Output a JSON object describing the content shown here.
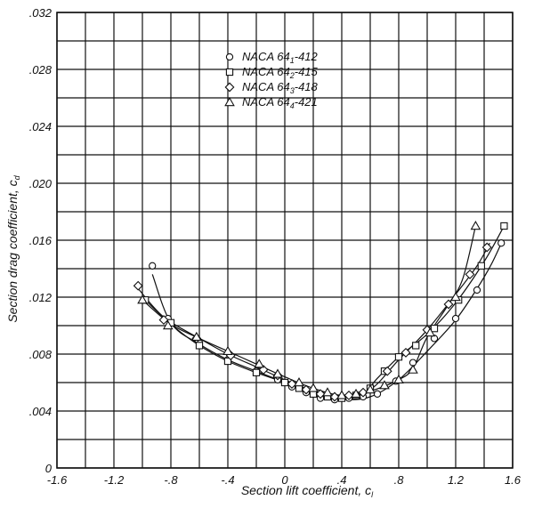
{
  "chart_data": {
    "type": "scatter",
    "title": "",
    "xlabel": "Section lift coefficient, c",
    "xlabel_sub": "l",
    "ylabel": "Section drag coefficient, c",
    "ylabel_sub": "d",
    "xlim": [
      -1.6,
      1.6
    ],
    "ylim": [
      0,
      0.032
    ],
    "x_ticks": [
      {
        "v": -1.6,
        "label": "-1.6"
      },
      {
        "v": -1.2,
        "label": "-1.2"
      },
      {
        "v": -0.8,
        "label": "-.8"
      },
      {
        "v": -0.4,
        "label": "-.4"
      },
      {
        "v": 0,
        "label": "0"
      },
      {
        "v": 0.4,
        "label": ".4"
      },
      {
        "v": 0.8,
        "label": ".8"
      },
      {
        "v": 1.2,
        "label": "1.2"
      },
      {
        "v": 1.6,
        "label": "1.6"
      }
    ],
    "y_ticks": [
      {
        "v": 0,
        "label": "0"
      },
      {
        "v": 0.004,
        "label": ".004"
      },
      {
        "v": 0.008,
        "label": ".008"
      },
      {
        "v": 0.012,
        "label": ".012"
      },
      {
        "v": 0.016,
        "label": ".016"
      },
      {
        "v": 0.02,
        "label": ".020"
      },
      {
        "v": 0.024,
        "label": ".024"
      },
      {
        "v": 0.028,
        "label": ".028"
      },
      {
        "v": 0.032,
        "label": ".032"
      }
    ],
    "grid": true,
    "grid_step_x": 0.2,
    "grid_step_y": 0.002,
    "legend_position": "top-center",
    "series": [
      {
        "name_prefix": "NACA 64",
        "name_sub": "1",
        "name_suffix": "-412",
        "marker": "circle",
        "points": [
          [
            -0.93,
            0.0142
          ],
          [
            -0.82,
            0.0105
          ],
          [
            -0.6,
            0.0088
          ],
          [
            -0.4,
            0.0076
          ],
          [
            -0.2,
            0.0068
          ],
          [
            -0.05,
            0.0062
          ],
          [
            0.05,
            0.0057
          ],
          [
            0.15,
            0.0053
          ],
          [
            0.25,
            0.0049
          ],
          [
            0.35,
            0.0048
          ],
          [
            0.45,
            0.0049
          ],
          [
            0.55,
            0.005
          ],
          [
            0.65,
            0.0052
          ],
          [
            0.78,
            0.0061
          ],
          [
            0.9,
            0.0074
          ],
          [
            1.05,
            0.0091
          ],
          [
            1.2,
            0.0105
          ],
          [
            1.35,
            0.0125
          ],
          [
            1.52,
            0.0158
          ]
        ],
        "curve": [
          [
            -0.93,
            0.0136
          ],
          [
            -0.8,
            0.0102
          ],
          [
            -0.6,
            0.0087
          ],
          [
            -0.4,
            0.0076
          ],
          [
            -0.2,
            0.0068
          ],
          [
            0,
            0.006
          ],
          [
            0.2,
            0.0051
          ],
          [
            0.4,
            0.0048
          ],
          [
            0.6,
            0.005
          ],
          [
            0.8,
            0.0062
          ],
          [
            1.0,
            0.0082
          ],
          [
            1.2,
            0.0104
          ],
          [
            1.35,
            0.0126
          ],
          [
            1.45,
            0.0143
          ],
          [
            1.53,
            0.016
          ]
        ]
      },
      {
        "name_prefix": "NACA 64",
        "name_sub": "2",
        "name_suffix": "-415",
        "marker": "square",
        "points": [
          [
            -0.98,
            0.0118
          ],
          [
            -0.8,
            0.0102
          ],
          [
            -0.6,
            0.0086
          ],
          [
            -0.4,
            0.0075
          ],
          [
            -0.2,
            0.0067
          ],
          [
            0,
            0.006
          ],
          [
            0.1,
            0.0056
          ],
          [
            0.2,
            0.0052
          ],
          [
            0.3,
            0.005
          ],
          [
            0.4,
            0.0049
          ],
          [
            0.5,
            0.0051
          ],
          [
            0.6,
            0.0056
          ],
          [
            0.7,
            0.0068
          ],
          [
            0.8,
            0.0078
          ],
          [
            0.92,
            0.0086
          ],
          [
            1.05,
            0.0098
          ],
          [
            1.22,
            0.0118
          ],
          [
            1.38,
            0.0142
          ],
          [
            1.54,
            0.017
          ]
        ],
        "curve": [
          [
            -0.98,
            0.0118
          ],
          [
            -0.8,
            0.0101
          ],
          [
            -0.6,
            0.0086
          ],
          [
            -0.4,
            0.0075
          ],
          [
            -0.2,
            0.0067
          ],
          [
            0,
            0.006
          ],
          [
            0.2,
            0.0052
          ],
          [
            0.4,
            0.0049
          ],
          [
            0.55,
            0.0052
          ],
          [
            0.65,
            0.0063
          ],
          [
            0.8,
            0.0078
          ],
          [
            1.0,
            0.0094
          ],
          [
            1.2,
            0.0116
          ],
          [
            1.4,
            0.0145
          ],
          [
            1.54,
            0.017
          ]
        ]
      },
      {
        "name_prefix": "NACA 64",
        "name_sub": "3",
        "name_suffix": "-418",
        "marker": "diamond",
        "points": [
          [
            -1.03,
            0.0128
          ],
          [
            -0.85,
            0.0104
          ],
          [
            -0.62,
            0.0091
          ],
          [
            -0.38,
            0.0079
          ],
          [
            -0.15,
            0.0069
          ],
          [
            -0.05,
            0.0065
          ],
          [
            0.05,
            0.0059
          ],
          [
            0.15,
            0.0055
          ],
          [
            0.25,
            0.0052
          ],
          [
            0.35,
            0.005
          ],
          [
            0.45,
            0.0051
          ],
          [
            0.55,
            0.0053
          ],
          [
            0.72,
            0.0068
          ],
          [
            0.85,
            0.0081
          ],
          [
            1.0,
            0.0097
          ],
          [
            1.15,
            0.0115
          ],
          [
            1.3,
            0.0136
          ],
          [
            1.42,
            0.0155
          ]
        ],
        "curve": [
          [
            -1.03,
            0.0126
          ],
          [
            -0.85,
            0.0106
          ],
          [
            -0.6,
            0.0091
          ],
          [
            -0.4,
            0.008
          ],
          [
            -0.2,
            0.0071
          ],
          [
            0,
            0.0062
          ],
          [
            0.2,
            0.0054
          ],
          [
            0.4,
            0.005
          ],
          [
            0.6,
            0.0055
          ],
          [
            0.8,
            0.0076
          ],
          [
            1.0,
            0.0097
          ],
          [
            1.2,
            0.0122
          ],
          [
            1.35,
            0.0142
          ],
          [
            1.44,
            0.0158
          ]
        ]
      },
      {
        "name_prefix": "NACA 64",
        "name_sub": "4",
        "name_suffix": "-421",
        "marker": "triangle",
        "points": [
          [
            -1.0,
            0.0118
          ],
          [
            -0.82,
            0.01
          ],
          [
            -0.62,
            0.0092
          ],
          [
            -0.4,
            0.0082
          ],
          [
            -0.18,
            0.0073
          ],
          [
            -0.05,
            0.0066
          ],
          [
            0.1,
            0.006
          ],
          [
            0.2,
            0.0056
          ],
          [
            0.3,
            0.0053
          ],
          [
            0.4,
            0.0051
          ],
          [
            0.5,
            0.0052
          ],
          [
            0.6,
            0.0055
          ],
          [
            0.7,
            0.0058
          ],
          [
            0.8,
            0.0062
          ],
          [
            0.9,
            0.0069
          ],
          [
            1.02,
            0.0095
          ],
          [
            1.2,
            0.012
          ],
          [
            1.34,
            0.017
          ]
        ],
        "curve": [
          [
            -1.0,
            0.0118
          ],
          [
            -0.8,
            0.0101
          ],
          [
            -0.6,
            0.0091
          ],
          [
            -0.4,
            0.0082
          ],
          [
            -0.2,
            0.0073
          ],
          [
            0,
            0.0064
          ],
          [
            0.2,
            0.0056
          ],
          [
            0.4,
            0.0051
          ],
          [
            0.6,
            0.0054
          ],
          [
            0.8,
            0.0062
          ],
          [
            0.9,
            0.007
          ],
          [
            1.0,
            0.0092
          ],
          [
            1.15,
            0.0115
          ],
          [
            1.25,
            0.0133
          ],
          [
            1.34,
            0.017
          ]
        ]
      }
    ]
  }
}
